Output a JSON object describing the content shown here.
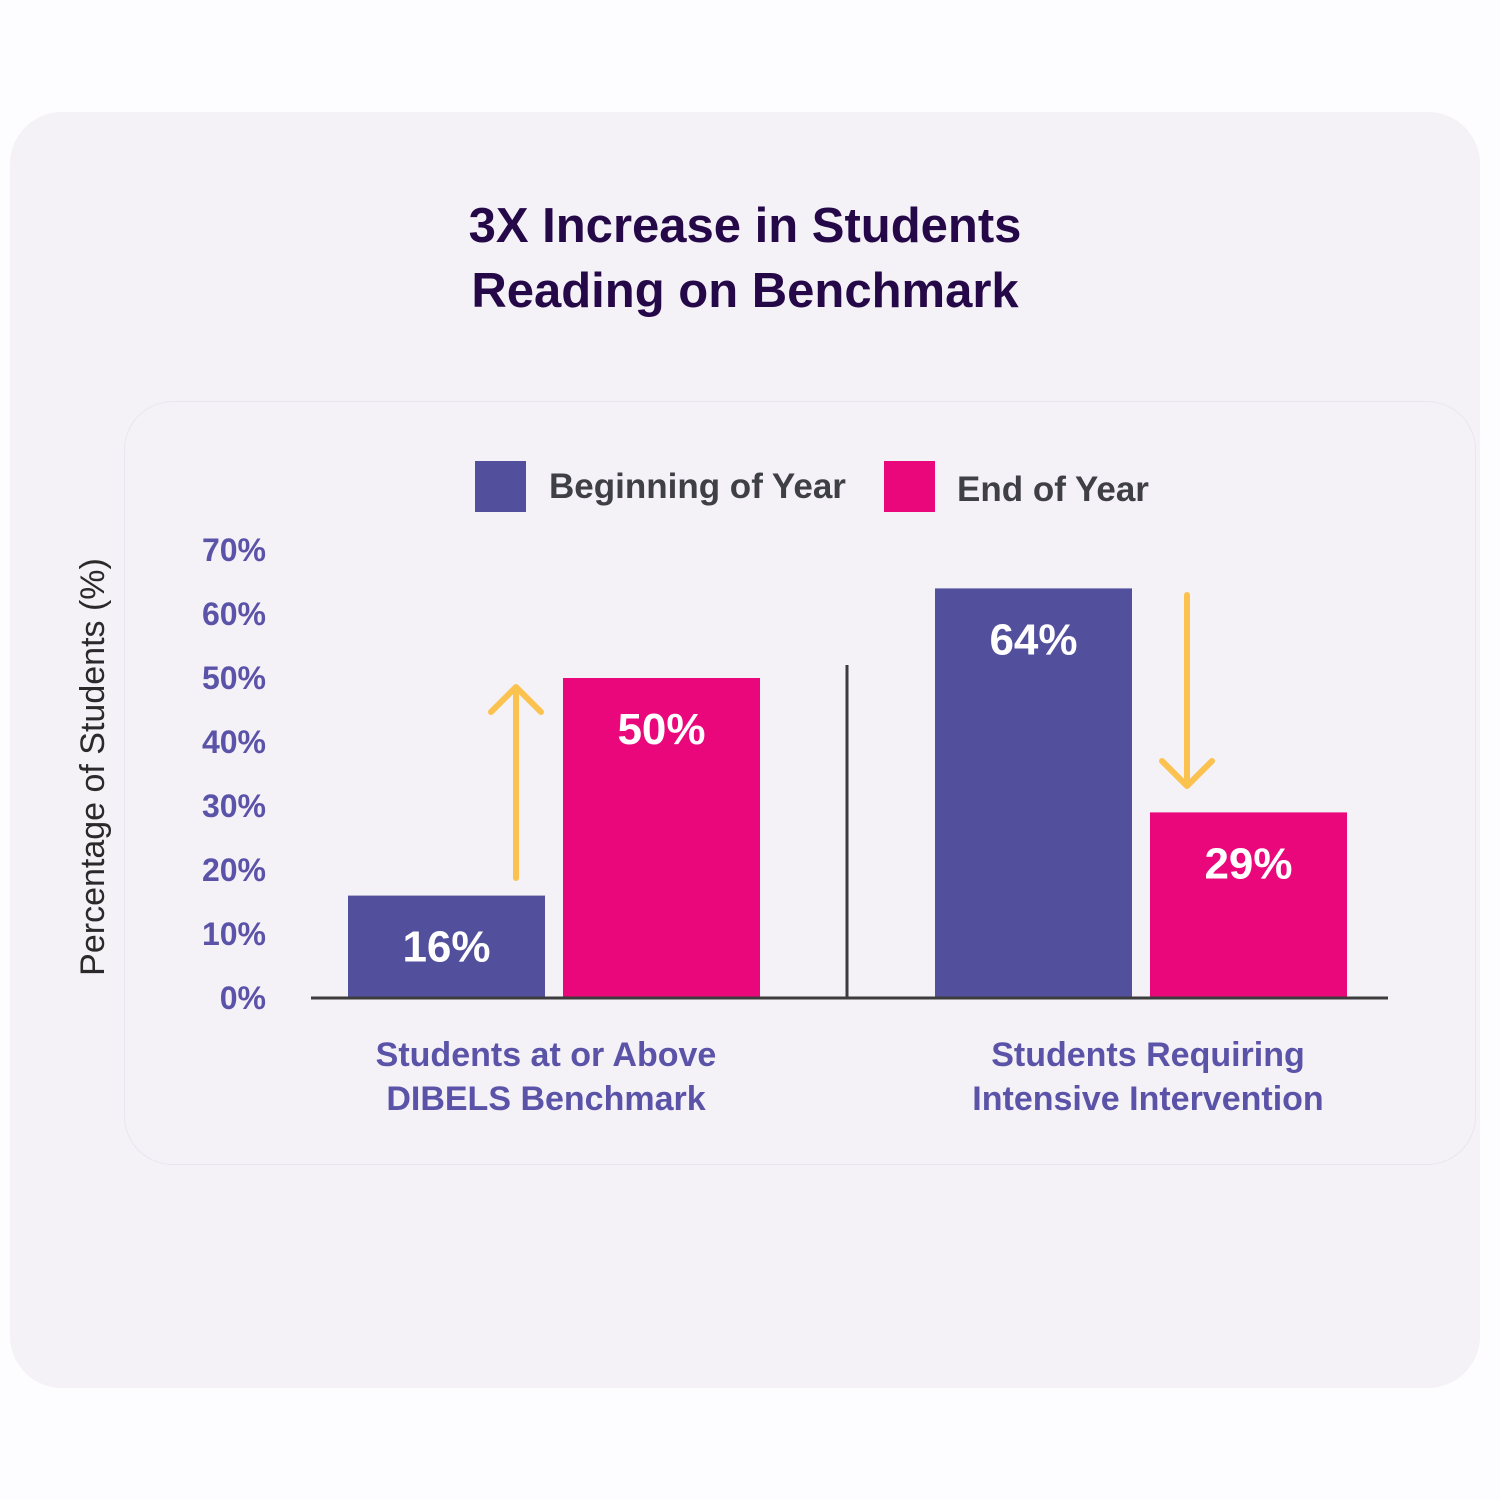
{
  "title": {
    "line1": "3X Increase in Students",
    "line2": "Reading on Benchmark"
  },
  "colors": {
    "beginning": "#524f9c",
    "end": "#ea077c",
    "arrow": "#fbc250",
    "axis": "#3c3c3c"
  },
  "chart_data": {
    "type": "bar",
    "ylabel": "Percentage of Students (%)",
    "ylim": [
      0,
      70
    ],
    "yticks": [
      0,
      10,
      20,
      30,
      40,
      50,
      60,
      70
    ],
    "ytick_labels": [
      "0%",
      "10%",
      "20%",
      "30%",
      "40%",
      "50%",
      "60%",
      "70%"
    ],
    "categories": [
      [
        "Students at or Above",
        "DIBELS Benchmark"
      ],
      [
        "Students Requiring",
        "Intensive Intervention"
      ]
    ],
    "series": [
      {
        "name": "Beginning of Year",
        "values": [
          16,
          64
        ],
        "labels": [
          "16%",
          "64%"
        ]
      },
      {
        "name": "End of Year",
        "values": [
          50,
          29
        ],
        "labels": [
          "50%",
          "29%"
        ]
      }
    ],
    "legend": "top-center",
    "grid": false,
    "annotations": [
      {
        "type": "arrow",
        "direction": "up",
        "category_index": 0
      },
      {
        "type": "arrow",
        "direction": "down",
        "category_index": 1
      }
    ]
  }
}
